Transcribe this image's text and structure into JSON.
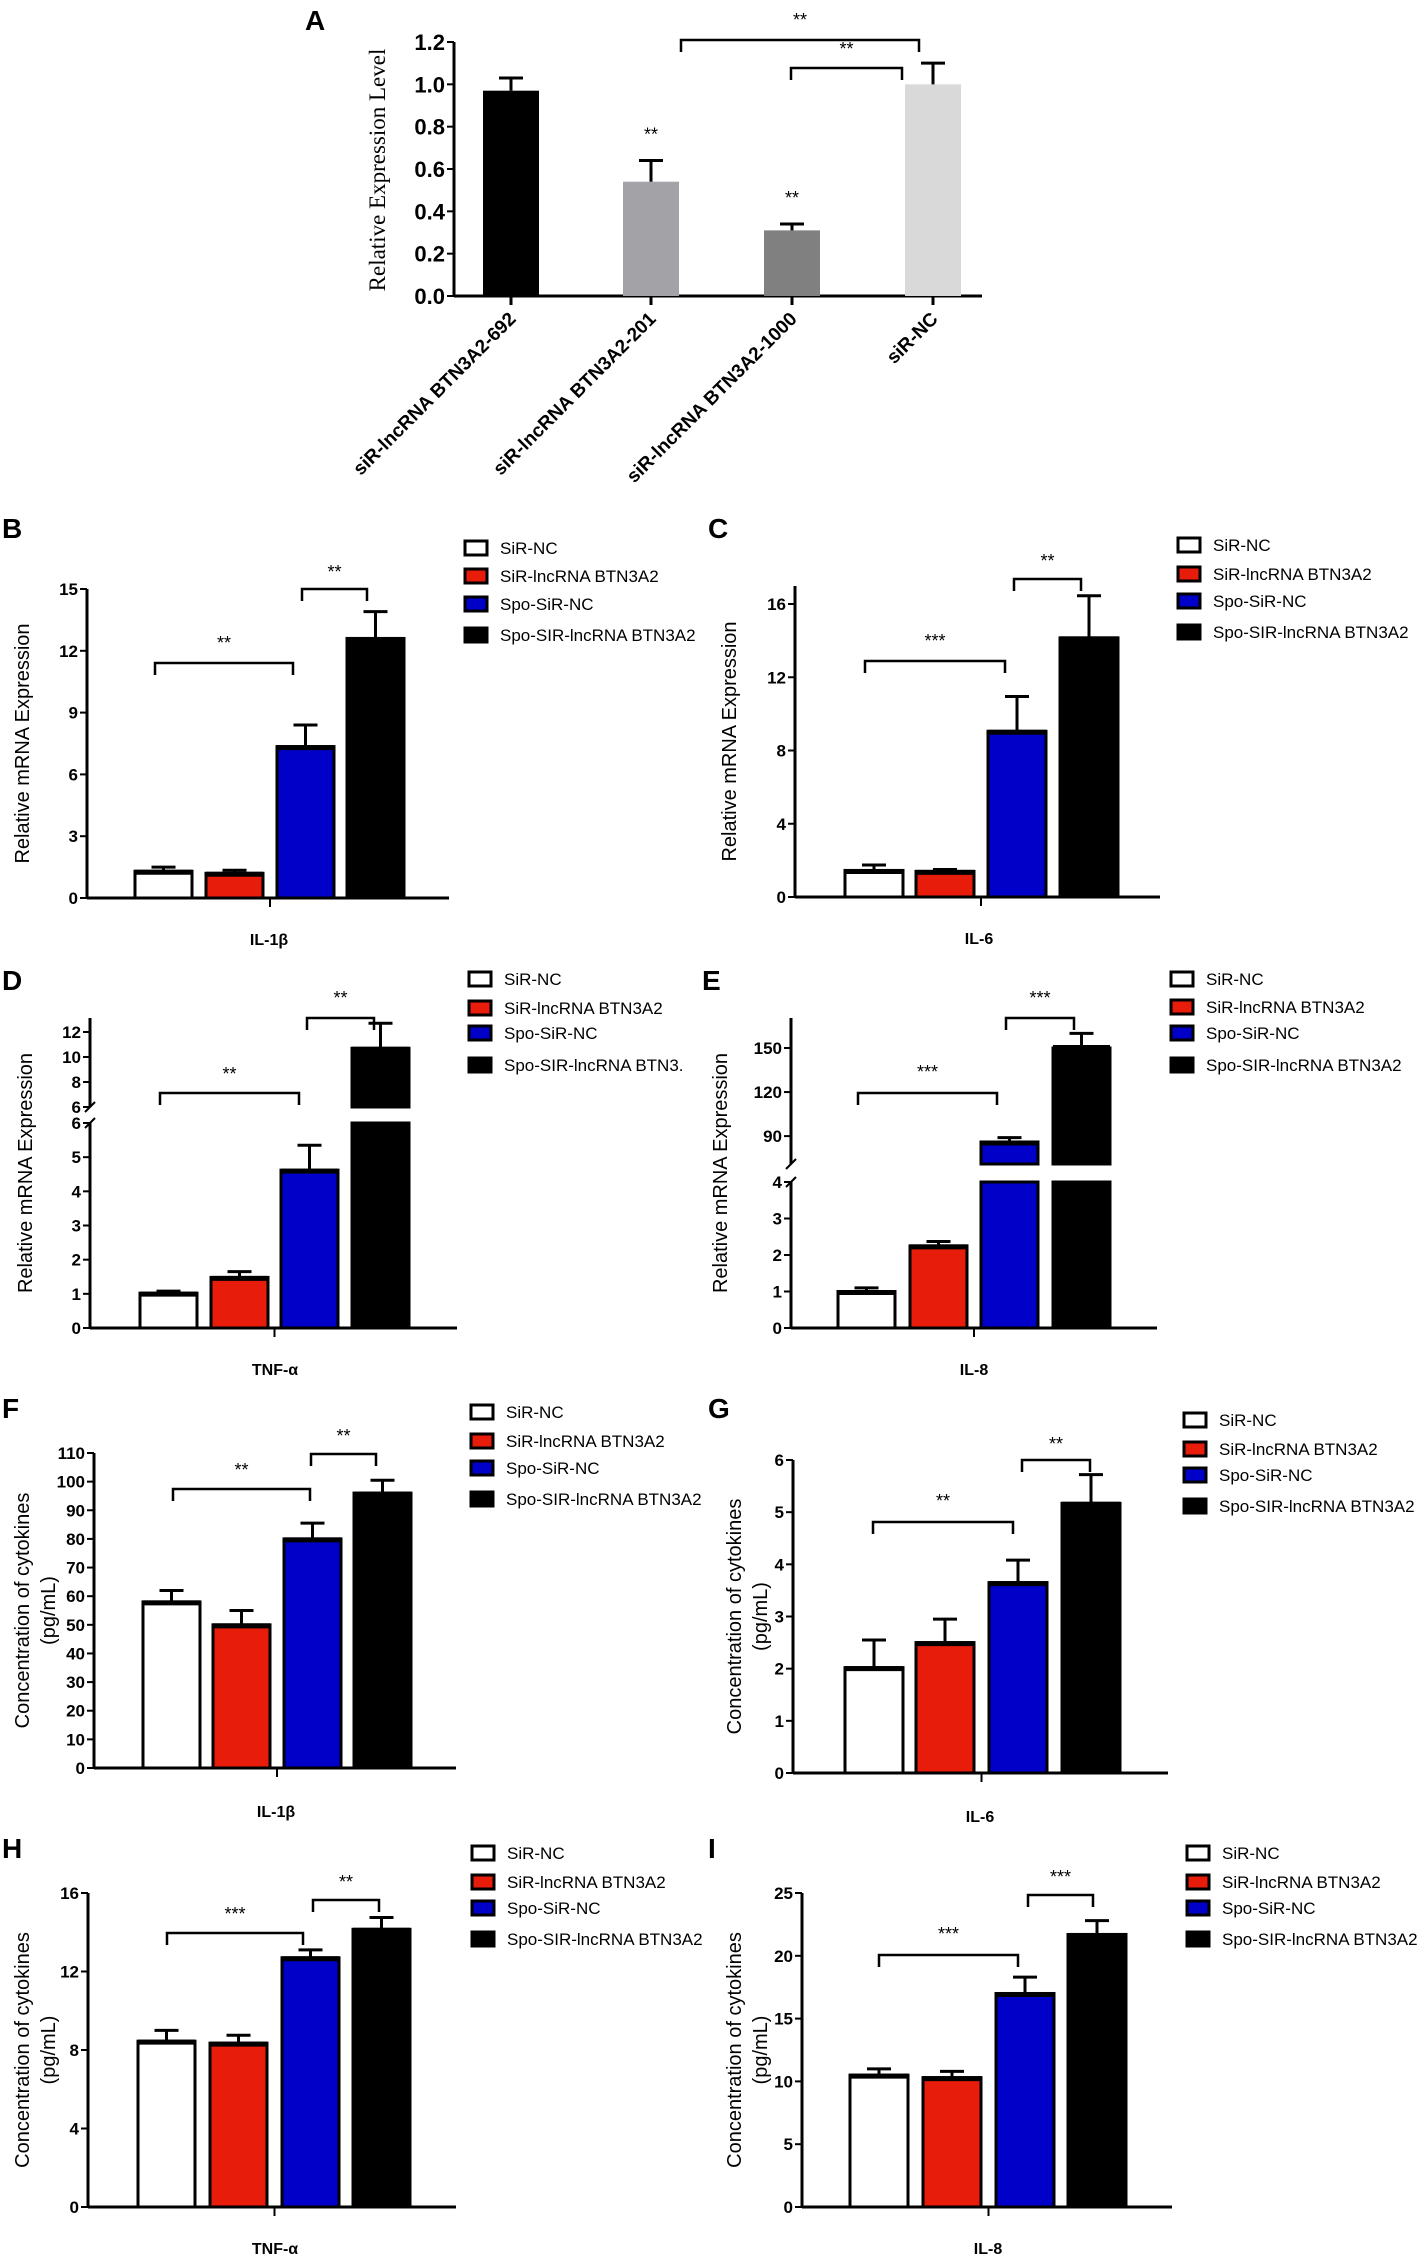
{
  "chart_data": [
    {
      "panel": "A",
      "type": "bar",
      "ylabel": "Relative Expression Level",
      "categories": [
        "siR-lncRNA BTN3A2-692",
        "siR-lncRNA BTN3A2-201",
        "siR-lncRNA BTN3A2-1000",
        "siR-NC"
      ],
      "values": [
        0.97,
        0.54,
        0.31,
        1.0
      ],
      "errors": [
        0.06,
        0.1,
        0.03,
        0.1
      ],
      "colors": [
        "#000000",
        "#a3a3a7",
        "#808080",
        "#d9d9d9"
      ],
      "ylim": [
        0,
        1.2
      ],
      "yticks": [
        "0.0",
        "0.2",
        "0.4",
        "0.6",
        "0.8",
        "1.0",
        "1.2"
      ],
      "bar_annotations": [
        "",
        "**",
        "**",
        ""
      ],
      "comparisons": [
        {
          "from": 1,
          "to": 3,
          "label": "**"
        },
        {
          "from": 2,
          "to": 3,
          "label": "**"
        }
      ]
    },
    {
      "panel": "B",
      "type": "bar",
      "xlabel": "IL-1β",
      "ylabel": "Relative mRNA Expression",
      "legend": [
        "SiR-NC",
        "SiR-lncRNA BTN3A2",
        "Spo-SiR-NC",
        "Spo-SIR-lncRNA BTN3A2"
      ],
      "values": [
        1.3,
        1.2,
        7.35,
        12.6
      ],
      "errors": [
        0.2,
        0.15,
        1.05,
        1.3
      ],
      "colors": [
        "#ffffff",
        "#e81c0a",
        "#0000c8",
        "#000000"
      ],
      "ylim": [
        0,
        15
      ],
      "yticks": [
        "0",
        "3",
        "6",
        "9",
        "12",
        "15"
      ],
      "comparisons": [
        {
          "from": 0,
          "to": 2,
          "label": "**"
        },
        {
          "from": 2,
          "to": 3,
          "label": "**"
        }
      ]
    },
    {
      "panel": "C",
      "type": "bar",
      "xlabel": "IL-6",
      "ylabel": "Relative mRNA Expression",
      "legend": [
        "SiR-NC",
        "SiR-lncRNA BTN3A2",
        "Spo-SiR-NC",
        "Spo-SIR-lncRNA BTN3A2"
      ],
      "values": [
        1.45,
        1.4,
        9.05,
        14.15
      ],
      "errors": [
        0.3,
        0.1,
        1.9,
        2.3
      ],
      "colors": [
        "#ffffff",
        "#e81c0a",
        "#0000c8",
        "#000000"
      ],
      "ylim": [
        0,
        16
      ],
      "yticks": [
        "0",
        "4",
        "8",
        "12",
        "16"
      ],
      "comparisons": [
        {
          "from": 0,
          "to": 2,
          "label": "***"
        },
        {
          "from": 2,
          "to": 3,
          "label": "**"
        }
      ]
    },
    {
      "panel": "D",
      "type": "bar",
      "xlabel": "TNF-α",
      "ylabel": "Relative mRNA Expression",
      "legend": [
        "SiR-NC",
        "SiR-lncRNA BTN3A2",
        "Spo-SiR-NC",
        "Spo-SIR-lncRNA BTN3."
      ],
      "values": [
        1.02,
        1.48,
        4.62,
        10.7
      ],
      "errors": [
        0.06,
        0.17,
        0.73,
        2.0
      ],
      "colors": [
        "#ffffff",
        "#e81c0a",
        "#0000c8",
        "#000000"
      ],
      "ylim": [
        0,
        12
      ],
      "axis_break": [
        6,
        6
      ],
      "yticks": [
        "0",
        "1",
        "2",
        "3",
        "4",
        "5",
        "6",
        "6",
        "8",
        "10",
        "12"
      ],
      "comparisons": [
        {
          "from": 0,
          "to": 2,
          "label": "**"
        },
        {
          "from": 2,
          "to": 3,
          "label": "**"
        }
      ]
    },
    {
      "panel": "E",
      "type": "bar",
      "xlabel": "IL-8",
      "ylabel": "Relative mRNA Expression",
      "legend": [
        "SiR-NC",
        "SiR-lncRNA BTN3A2",
        "Spo-SiR-NC",
        "Spo-SIR-lncRNA BTN3A2"
      ],
      "values": [
        1.0,
        2.25,
        86,
        151
      ],
      "errors": [
        0.1,
        0.12,
        3,
        9
      ],
      "colors": [
        "#ffffff",
        "#e81c0a",
        "#0000c8",
        "#000000"
      ],
      "ylim": [
        0,
        150
      ],
      "axis_break": [
        4,
        71
      ],
      "yticks": [
        "0",
        "1",
        "2",
        "3",
        "4",
        "90",
        "120",
        "150"
      ],
      "comparisons": [
        {
          "from": 0,
          "to": 2,
          "label": "***"
        },
        {
          "from": 2,
          "to": 3,
          "label": "***"
        }
      ]
    },
    {
      "panel": "F",
      "type": "bar",
      "xlabel": "IL-1β",
      "ylabel": [
        "Concentration of cytokines",
        "(pg/mL)"
      ],
      "legend": [
        "SiR-NC",
        "SiR-lncRNA BTN3A2",
        "Spo-SiR-NC",
        "Spo-SIR-lncRNA BTN3A2"
      ],
      "values": [
        58,
        50,
        80,
        96
      ],
      "errors": [
        4,
        5,
        5.5,
        4.5
      ],
      "colors": [
        "#ffffff",
        "#e81c0a",
        "#0000c8",
        "#000000"
      ],
      "ylim": [
        0,
        110
      ],
      "yticks": [
        "0",
        "10",
        "20",
        "30",
        "40",
        "50",
        "60",
        "70",
        "80",
        "90",
        "100",
        "110"
      ],
      "comparisons": [
        {
          "from": 0,
          "to": 2,
          "label": "**"
        },
        {
          "from": 2,
          "to": 3,
          "label": "**"
        }
      ]
    },
    {
      "panel": "G",
      "type": "bar",
      "xlabel": "IL-6",
      "ylabel": [
        "Concentration of cytokines",
        "(pg/mL)"
      ],
      "legend": [
        "SiR-NC",
        "SiR-lncRNA BTN3A2",
        "Spo-SiR-NC",
        "Spo-SIR-lncRNA BTN3A2"
      ],
      "values": [
        2.02,
        2.5,
        3.65,
        5.17
      ],
      "errors": [
        0.53,
        0.45,
        0.43,
        0.55
      ],
      "colors": [
        "#ffffff",
        "#e81c0a",
        "#0000c8",
        "#000000"
      ],
      "ylim": [
        0,
        6
      ],
      "yticks": [
        "0",
        "1",
        "2",
        "3",
        "4",
        "5",
        "6"
      ],
      "comparisons": [
        {
          "from": 0,
          "to": 2,
          "label": "**"
        },
        {
          "from": 2,
          "to": 3,
          "label": "**"
        }
      ]
    },
    {
      "panel": "H",
      "type": "bar",
      "xlabel": "TNF-α",
      "ylabel": [
        "Concentration of cytokines",
        "(pg/mL)"
      ],
      "legend": [
        "SiR-NC",
        "SiR-lncRNA BTN3A2",
        "Spo-SiR-NC",
        "Spo-SIR-lncRNA BTN3A2"
      ],
      "values": [
        8.45,
        8.35,
        12.7,
        14.15
      ],
      "errors": [
        0.55,
        0.4,
        0.4,
        0.6
      ],
      "colors": [
        "#ffffff",
        "#e81c0a",
        "#0000c8",
        "#000000"
      ],
      "ylim": [
        0,
        16
      ],
      "yticks": [
        "0",
        "4",
        "8",
        "12",
        "16"
      ],
      "comparisons": [
        {
          "from": 0,
          "to": 2,
          "label": "***"
        },
        {
          "from": 2,
          "to": 3,
          "label": "**"
        }
      ]
    },
    {
      "panel": "I",
      "type": "bar",
      "xlabel": "IL-8",
      "ylabel": [
        "Concentration of cytokines",
        "(pg/mL)"
      ],
      "legend": [
        "SiR-NC",
        "SiR-lncRNA BTN3A2",
        "Spo-SiR-NC",
        "Spo-SIR-lncRNA BTN3A2"
      ],
      "values": [
        10.5,
        10.3,
        17.0,
        21.7
      ],
      "errors": [
        0.5,
        0.5,
        1.3,
        1.1
      ],
      "colors": [
        "#ffffff",
        "#e81c0a",
        "#0000c8",
        "#000000"
      ],
      "ylim": [
        0,
        25
      ],
      "yticks": [
        "0",
        "5",
        "10",
        "15",
        "20",
        "25"
      ],
      "comparisons": [
        {
          "from": 0,
          "to": 2,
          "label": "***"
        },
        {
          "from": 2,
          "to": 3,
          "label": "***"
        }
      ]
    }
  ]
}
